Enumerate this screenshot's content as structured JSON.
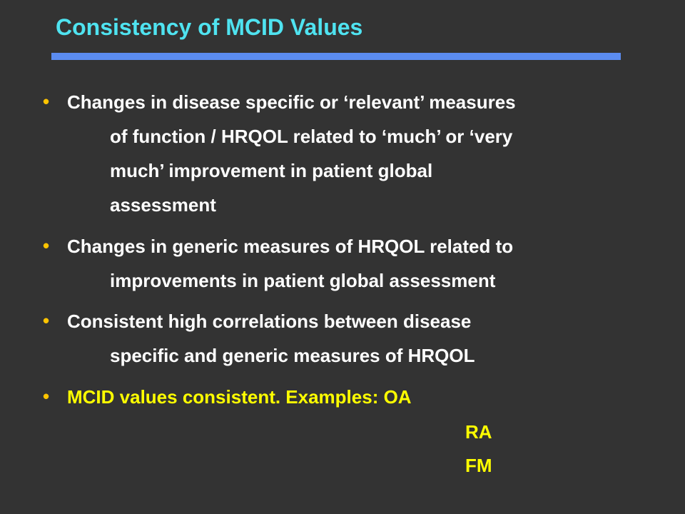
{
  "slide": {
    "title": "Consistency of MCID Values",
    "bullet_glyph": "•",
    "bullets": [
      {
        "lines": [
          "Changes in disease specific or ‘relevant’ measures",
          "of function / HRQOL related to ‘much’ or ‘very",
          "much’ improvement in patient global",
          "assessment"
        ]
      },
      {
        "lines": [
          "Changes in generic measures of HRQOL related to",
          "improvements in patient global assessment"
        ]
      },
      {
        "lines": [
          "Consistent high correlations between disease",
          "specific and generic measures of HRQOL"
        ]
      },
      {
        "lines": [
          "MCID values consistent.  Examples: OA",
          "RA",
          "FM"
        ]
      }
    ],
    "colors": {
      "background": "#333333",
      "title": "#4FE3F0",
      "rule": "#5B8CF0",
      "body_text": "#FFFFFF",
      "highlight_text": "#FFFF00",
      "bullet": "#FFC400"
    }
  }
}
